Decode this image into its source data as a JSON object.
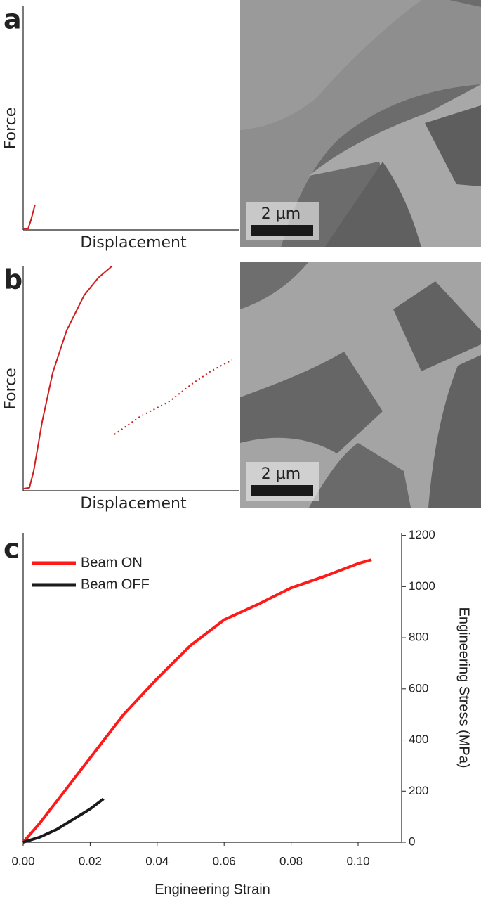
{
  "chart_data": [
    {
      "type": "line",
      "panel_label": "a",
      "xlabel": "Displacement",
      "ylabel": "Force",
      "scale_bar": "2 µm",
      "xlim": [
        0,
        1
      ],
      "ylim": [
        0,
        1
      ],
      "series": [
        {
          "color": "#cc1f1f",
          "x": [
            0,
            0.023,
            0.036,
            0.055
          ],
          "values": [
            0.006,
            0.006,
            0.044,
            0.113
          ]
        }
      ]
    },
    {
      "type": "line",
      "panel_label": "b",
      "xlabel": "Displacement",
      "ylabel": "Force",
      "scale_bar": "2 µm",
      "xlim": [
        0,
        1
      ],
      "ylim": [
        0,
        1
      ],
      "series": [
        {
          "color": "#cc1f1f",
          "x": [
            0,
            0.029,
            0.049,
            0.088,
            0.137,
            0.202,
            0.283,
            0.349,
            0.414
          ],
          "values": [
            0.009,
            0.013,
            0.088,
            0.306,
            0.525,
            0.713,
            0.869,
            0.947,
            1.0
          ]
        },
        {
          "color": "#cc1f1f",
          "x": [
            0.423,
            0.544,
            0.674,
            0.788,
            0.87,
            0.967
          ],
          "values": [
            0.25,
            0.331,
            0.394,
            0.478,
            0.531,
            0.581
          ]
        }
      ]
    },
    {
      "type": "line",
      "panel_label": "c",
      "xlabel": "Engineering Strain",
      "ylabel": "Engineering Stress (MPa)",
      "legend": "upper left",
      "xlim": [
        0,
        0.113
      ],
      "ylim": [
        0,
        1210
      ],
      "xticks": [
        {
          "value": 0,
          "label": "0.00"
        },
        0.02,
        0.04,
        0.06,
        0.08,
        {
          "value": 0.1,
          "label": "0.10"
        }
      ],
      "yticks": [
        0,
        200,
        400,
        600,
        800,
        1000,
        1200
      ],
      "series": [
        {
          "name": "Beam ON",
          "color": "#ff1a1a",
          "x": [
            0,
            0.005,
            0.01,
            0.02,
            0.03,
            0.04,
            0.05,
            0.06,
            0.07,
            0.08,
            0.09,
            0.1,
            0.104
          ],
          "values": [
            0,
            75,
            160,
            330,
            500,
            640,
            770,
            870,
            930,
            995,
            1040,
            1090,
            1105
          ]
        },
        {
          "name": "Beam OFF",
          "color": "#1a1a1a",
          "x": [
            0,
            0.005,
            0.01,
            0.015,
            0.02,
            0.024
          ],
          "values": [
            0,
            20,
            50,
            90,
            130,
            170
          ]
        }
      ]
    }
  ]
}
